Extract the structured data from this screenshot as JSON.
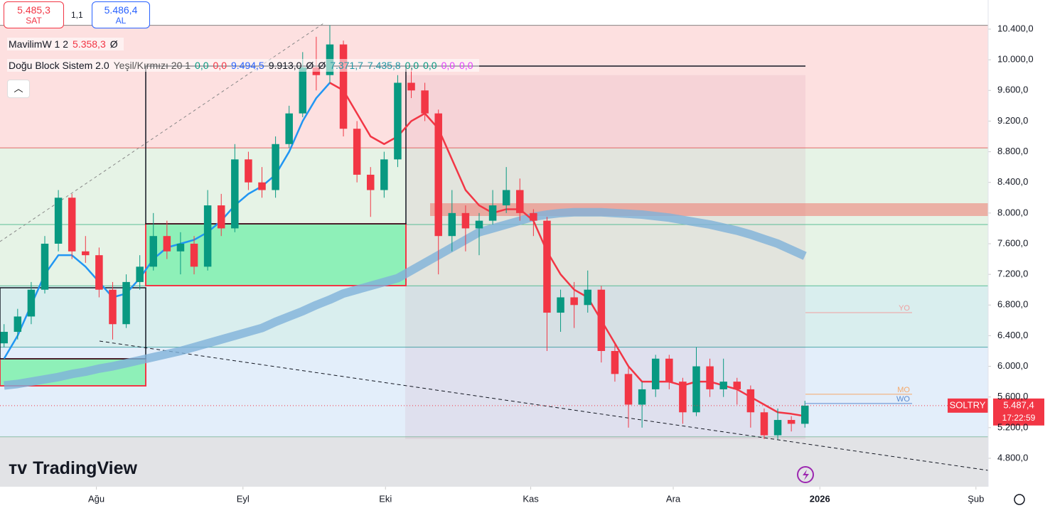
{
  "header": {
    "sell_price": "5.485,3",
    "sell_label": "SAT",
    "spread": "1,1",
    "buy_price": "5.486,4",
    "buy_label": "AL"
  },
  "indicators": {
    "mavilim": {
      "name": "MavilimW 1 2",
      "value": "5.358,3",
      "extra": "Ø"
    },
    "dogu": {
      "name": "Doğu Block Sistem 2.0",
      "params": "Yeşil/Kırmızı 20 1",
      "values": [
        {
          "text": "0,0",
          "color": "#089981"
        },
        {
          "text": "0,0",
          "color": "#f23645"
        },
        {
          "text": "9.494,5",
          "color": "#2962ff"
        },
        {
          "text": "9.913,0",
          "color": "#131722"
        },
        {
          "text": "Ø",
          "color": "#131722"
        },
        {
          "text": "Ø",
          "color": "#131722"
        },
        {
          "text": "7.371,7",
          "color": "#2196a3"
        },
        {
          "text": "7.435,8",
          "color": "#2196a3"
        },
        {
          "text": "0,0",
          "color": "#089981"
        },
        {
          "text": "0,0",
          "color": "#089981"
        },
        {
          "text": "0,0",
          "color": "#e040fb"
        },
        {
          "text": "0,0",
          "color": "#e040fb"
        }
      ]
    }
  },
  "brand": "TradingView",
  "chart_data": {
    "type": "candlestick",
    "up_color": "#089981",
    "down_color": "#f23645",
    "categories": [
      null,
      null,
      null,
      null,
      null,
      null,
      null,
      null,
      null,
      null,
      null,
      null,
      null,
      null,
      null,
      null,
      null,
      null,
      null,
      null,
      null,
      null,
      null,
      null,
      null,
      null,
      null,
      null,
      null,
      null,
      null,
      null,
      null,
      null,
      null,
      null,
      null,
      null,
      null,
      null,
      null,
      null,
      null,
      null,
      null,
      null,
      null,
      null,
      null,
      null,
      null,
      null,
      null,
      null,
      null,
      null,
      null,
      null,
      null,
      null
    ],
    "values": [
      [
        6300,
        6550,
        6250,
        6450
      ],
      [
        6450,
        6750,
        6350,
        6650
      ],
      [
        6650,
        7100,
        6550,
        7000
      ],
      [
        7000,
        7700,
        6950,
        7600
      ],
      [
        7600,
        8300,
        7500,
        8200
      ],
      [
        8200,
        8250,
        7400,
        7500
      ],
      [
        7500,
        7700,
        7350,
        7450
      ],
      [
        7450,
        7550,
        6900,
        7000
      ],
      [
        7000,
        7100,
        6350,
        6550
      ],
      [
        6550,
        7200,
        6500,
        7100
      ],
      [
        7100,
        7450,
        7000,
        7300
      ],
      [
        7300,
        8000,
        7250,
        7700
      ],
      [
        7700,
        7900,
        7400,
        7500
      ],
      [
        7500,
        7750,
        7200,
        7600
      ],
      [
        7600,
        7700,
        7200,
        7300
      ],
      [
        7300,
        8300,
        7250,
        8100
      ],
      [
        8100,
        8250,
        7700,
        7800
      ],
      [
        7800,
        8900,
        7750,
        8700
      ],
      [
        8700,
        8800,
        8300,
        8400
      ],
      [
        8400,
        8600,
        8200,
        8300
      ],
      [
        8300,
        9000,
        8200,
        8900
      ],
      [
        8900,
        9400,
        8850,
        9300
      ],
      [
        9300,
        10100,
        9250,
        9900
      ],
      [
        9900,
        10300,
        9600,
        9800
      ],
      [
        9800,
        10450,
        9700,
        10200
      ],
      [
        10200,
        10250,
        9000,
        9100
      ],
      [
        9100,
        9200,
        8400,
        8500
      ],
      [
        8500,
        8600,
        7950,
        8300
      ],
      [
        8300,
        8800,
        8200,
        8700
      ],
      [
        8700,
        9800,
        8600,
        9700
      ],
      [
        9700,
        9900,
        9500,
        9600
      ],
      [
        9600,
        9700,
        9200,
        9300
      ],
      [
        9300,
        9350,
        7200,
        7700
      ],
      [
        7700,
        8300,
        7500,
        8000
      ],
      [
        8000,
        8100,
        7500,
        7800
      ],
      [
        7800,
        8000,
        7450,
        7900
      ],
      [
        7900,
        8300,
        7850,
        8100
      ],
      [
        8100,
        8600,
        8000,
        8300
      ],
      [
        8300,
        8450,
        7900,
        8000
      ],
      [
        8000,
        8050,
        7700,
        7900
      ],
      [
        7900,
        7950,
        6200,
        6700
      ],
      [
        6700,
        7000,
        6450,
        6900
      ],
      [
        6900,
        7100,
        6500,
        6800
      ],
      [
        6800,
        7250,
        6700,
        7000
      ],
      [
        7000,
        7050,
        6050,
        6200
      ],
      [
        6200,
        6300,
        5800,
        5900
      ],
      [
        5900,
        6000,
        5200,
        5500
      ],
      [
        5500,
        5800,
        5200,
        5700
      ],
      [
        5700,
        6150,
        5600,
        6100
      ],
      [
        6100,
        6150,
        5700,
        5800
      ],
      [
        5800,
        5850,
        5250,
        5400
      ],
      [
        5400,
        6250,
        5350,
        6000
      ],
      [
        6000,
        6100,
        5600,
        5700
      ],
      [
        5700,
        6100,
        5600,
        5800
      ],
      [
        5800,
        5850,
        5500,
        5700
      ],
      [
        5700,
        5750,
        5200,
        5400
      ],
      [
        5400,
        5450,
        5050,
        5100
      ],
      [
        5100,
        5450,
        5050,
        5300
      ],
      [
        5300,
        5350,
        5150,
        5250
      ],
      [
        5250,
        5550,
        5200,
        5487.4
      ]
    ],
    "overlays": [
      {
        "color": "#7fb2d9",
        "width": 12,
        "values": [
          5750,
          5770,
          5800,
          5830,
          5860,
          5900,
          5930,
          5970,
          6000,
          6040,
          6080,
          6120,
          6160,
          6200,
          6250,
          6300,
          6350,
          6400,
          6450,
          6500,
          6580,
          6650,
          6720,
          6800,
          6870,
          6950,
          7000,
          7050,
          7100,
          7150,
          7250,
          7350,
          7450,
          7550,
          7650,
          7750,
          7800,
          7850,
          7900,
          7950,
          7980,
          8000,
          8010,
          8010,
          8010,
          8000,
          7990,
          7980,
          7960,
          7940,
          7910,
          7880,
          7850,
          7810,
          7770,
          7720,
          7660,
          7600,
          7520,
          7440
        ]
      },
      {
        "color": "#2196f3",
        "width": 2.5,
        "values": [
          6100,
          6400,
          6800,
          7200,
          7450,
          7450,
          7300,
          7100,
          6900,
          6950,
          7150,
          7400,
          7550,
          7600,
          7650,
          7750,
          7900,
          8100,
          8250,
          8350,
          8500,
          8800,
          9200,
          9500,
          9700,
          null,
          null,
          null,
          null,
          null,
          null,
          null,
          null,
          null,
          null,
          null,
          null,
          null,
          null,
          null,
          null,
          null,
          null,
          null,
          null,
          null,
          null,
          null,
          null,
          null,
          null,
          null,
          null,
          null,
          null,
          null,
          null,
          null,
          null,
          null
        ]
      },
      {
        "color": "#f23645",
        "width": 2.5,
        "values": [
          null,
          null,
          null,
          null,
          null,
          null,
          null,
          null,
          null,
          null,
          null,
          null,
          null,
          null,
          null,
          null,
          null,
          null,
          null,
          null,
          null,
          null,
          null,
          null,
          9700,
          9600,
          9300,
          9000,
          8900,
          9000,
          9200,
          9300,
          9100,
          8700,
          8300,
          8100,
          8000,
          8050,
          8050,
          7900,
          7500,
          7200,
          7000,
          6900,
          6600,
          6300,
          6000,
          5800,
          5800,
          5800,
          5750,
          5800,
          5800,
          5750,
          5700,
          5600,
          5500,
          5400,
          5380,
          5350
        ]
      }
    ],
    "zones": [
      {
        "from": 8850,
        "to": 10450,
        "color": "#fde0e0"
      },
      {
        "from": 7050,
        "to": 8850,
        "color": "#e6f3e6"
      },
      {
        "from": 6250,
        "to": 7050,
        "color": "#d9eeee"
      },
      {
        "from": 5080,
        "to": 6250,
        "color": "#e3eefa"
      },
      {
        "from": 4429,
        "to": 5080,
        "color": "#e2e3e6"
      }
    ],
    "levels": [
      {
        "value": 10450,
        "color": "#555"
      },
      {
        "value": 8850,
        "color": "#d33"
      },
      {
        "value": 7850,
        "color": "#2a7"
      },
      {
        "value": 7050,
        "color": "#2a7"
      },
      {
        "value": 6250,
        "color": "#188"
      },
      {
        "value": 5080,
        "color": "#6a8"
      }
    ],
    "tags": [
      {
        "value": 6700,
        "label": "YO",
        "color": "#f0a0a0"
      },
      {
        "value": 5635,
        "label": "MO",
        "color": "#f5a96a"
      },
      {
        "value": 5515,
        "label": "WO",
        "color": "#5a8ad0"
      }
    ],
    "price_line": 5487.4,
    "price_tag": {
      "symbol": "SOLTRY",
      "price": "5.487,4",
      "time": "17:22:59",
      "color": "#f23645"
    },
    "xlim": [
      -0.3,
      72.5
    ],
    "ylim": [
      4429,
      10780
    ],
    "grid": false,
    "yticks": [
      {
        "value": 10400,
        "label": "10.400,0"
      },
      {
        "value": 10000,
        "label": "10.000,0"
      },
      {
        "value": 9600,
        "label": "9.600,0"
      },
      {
        "value": 9200,
        "label": "9.200,0"
      },
      {
        "value": 8800,
        "label": "8.800,0"
      },
      {
        "value": 8400,
        "label": "8.400,0"
      },
      {
        "value": 8000,
        "label": "8.000,0"
      },
      {
        "value": 7600,
        "label": "7.600,0"
      },
      {
        "value": 7200,
        "label": "7.200,0"
      },
      {
        "value": 6800,
        "label": "6.800,0"
      },
      {
        "value": 6400,
        "label": "6.400,0"
      },
      {
        "value": 6000,
        "label": "6.000,0"
      },
      {
        "value": 5600,
        "label": "5.600,0"
      },
      {
        "value": 5200,
        "label": "5.200,0"
      },
      {
        "value": 4800,
        "label": "4.800,0"
      }
    ],
    "xticks": [
      {
        "value": 6.8,
        "label": "Ağu"
      },
      {
        "value": 17.6,
        "label": "Eyl"
      },
      {
        "value": 28.1,
        "label": "Eki"
      },
      {
        "value": 38.8,
        "label": "Kas"
      },
      {
        "value": 49.3,
        "label": "Ara"
      },
      {
        "value": 60.1,
        "label": "2026"
      },
      {
        "value": 71.6,
        "label": "Şub"
      }
    ]
  }
}
